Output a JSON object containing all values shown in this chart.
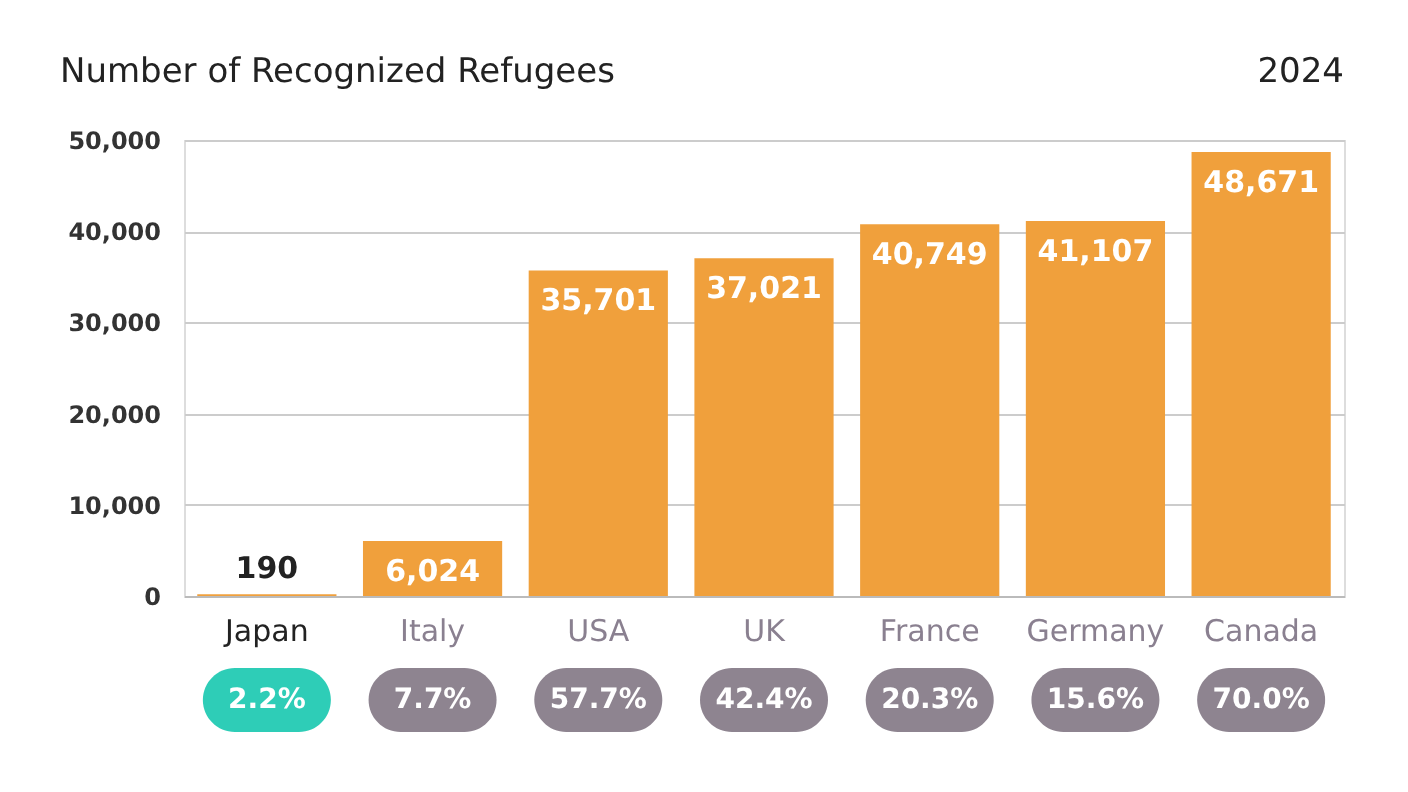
{
  "chart_data": {
    "type": "bar",
    "title": "Number of Recognized Refugees",
    "subtitle": "2024",
    "categories": [
      "Japan",
      "Italy",
      "USA",
      "UK",
      "France",
      "Germany",
      "Canada"
    ],
    "values": [
      190,
      6024,
      35701,
      37021,
      40749,
      41107,
      48671
    ],
    "value_labels": [
      "190",
      "6,024",
      "35,701",
      "37,021",
      "40,749",
      "41,107",
      "48,671"
    ],
    "color": "#f0a03c",
    "ylim": [
      0,
      50000
    ],
    "yticks": [
      0,
      {
        "value": 10000,
        "label": "10,000"
      },
      {
        "value": 20000,
        "label": "20,000"
      },
      {
        "value": 30000,
        "label": "30,000"
      },
      {
        "value": 40000,
        "label": "40,000"
      },
      {
        "value": 50000,
        "label": "50,000"
      }
    ],
    "grid": "y",
    "annotations": [
      "2.2%",
      "7.7%",
      "57.7%",
      "42.4%",
      "20.3%",
      "15.6%",
      "70.0%"
    ]
  }
}
